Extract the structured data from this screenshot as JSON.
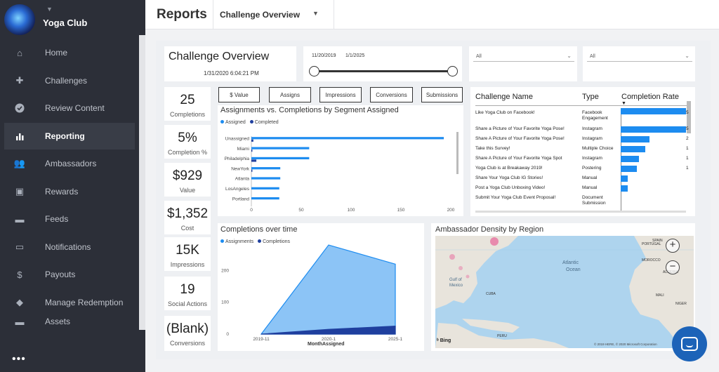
{
  "sidebar": {
    "title": "Yoga Club",
    "items": [
      {
        "label": "Home",
        "icon": "home-icon"
      },
      {
        "label": "Challenges",
        "icon": "puzzle-icon"
      },
      {
        "label": "Review Content",
        "icon": "check-circle-icon"
      },
      {
        "label": "Reporting",
        "icon": "bar-chart-icon"
      },
      {
        "label": "Ambassadors",
        "icon": "people-icon"
      },
      {
        "label": "Rewards",
        "icon": "briefcase-icon"
      },
      {
        "label": "Feeds",
        "icon": "feed-icon"
      },
      {
        "label": "Notifications",
        "icon": "chat-icon"
      },
      {
        "label": "Payouts",
        "icon": "dollar-icon"
      },
      {
        "label": "Manage Redemption",
        "icon": "tag-icon"
      },
      {
        "label": "Assets",
        "icon": "folder-icon"
      }
    ],
    "more": "•••"
  },
  "topbar": {
    "title": "Reports",
    "dropdown": "Challenge Overview"
  },
  "report": {
    "title": "Challenge Overview",
    "timestamp": "1/31/2020 6:04:21 PM",
    "date_start": "11/20/2019",
    "date_end": "1/1/2025",
    "filter1": "All",
    "filter2": "All",
    "buttons": [
      "$ Value",
      "Assigns",
      "Impressions",
      "Conversions",
      "Submissions"
    ]
  },
  "kpis": [
    {
      "value": "25",
      "label": "Completions"
    },
    {
      "value": "5%",
      "label": "Completion %"
    },
    {
      "value": "$929",
      "label": "Value"
    },
    {
      "value": "$1,352",
      "label": "Cost"
    },
    {
      "value": "15K",
      "label": "Impressions"
    },
    {
      "value": "19",
      "label": "Social Actions"
    },
    {
      "value": "(Blank)",
      "label": "Conversions"
    }
  ],
  "bar_chart": {
    "title": "Assignments vs. Completions by Segment Assigned",
    "legend": [
      "Assigned",
      "Completed"
    ]
  },
  "area_chart": {
    "title": "Completions over time",
    "legend": [
      "Assignments",
      "Completions"
    ],
    "xlabel": "MonthAssigned"
  },
  "map": {
    "title": "Ambassador Density by Region",
    "labels": [
      "Atlantic",
      "Ocean",
      "Gulf of",
      "Mexico",
      "PORTUGAL",
      "SPAIN",
      "MOROCCO",
      "ALGERIA",
      "MALI",
      "NIGER",
      "CUBA",
      "PERU"
    ],
    "bing": "Bing",
    "copyright": "© 2019 HERE, © 2020 Microsoft Corporation"
  },
  "table": {
    "headers": [
      "Challenge Name",
      "Type",
      "Completion Rate"
    ],
    "rows": [
      {
        "name": "Like Yoga Club on Facebook!",
        "type": "Facebook Engagement",
        "rate": 0.98,
        "num": "5"
      },
      {
        "name": "Share a Picture of Your Favorite Yoga Pose!",
        "type": "Instagram",
        "rate": 0.98,
        "num": "5"
      },
      {
        "name": "Share A Picture of Your Favorite Yoga Pose!",
        "type": "Instagram",
        "rate": 0.43,
        "num": "2"
      },
      {
        "name": "Take this Survey!",
        "type": "Multiple Choice",
        "rate": 0.37,
        "num": "1"
      },
      {
        "name": "Share A Picture of Your Favorite Yoga Spot",
        "type": "Instagram",
        "rate": 0.27,
        "num": "1"
      },
      {
        "name": "Yoga Club is at Breakaway 2019!",
        "type": "Postering",
        "rate": 0.24,
        "num": "1"
      },
      {
        "name": "Share Your Yoga Club IG Stories!",
        "type": "Manual",
        "rate": 0.11,
        "num": ""
      },
      {
        "name": "Post a Yoga Club Unboxing Video!",
        "type": "Manual",
        "rate": 0.11,
        "num": ""
      },
      {
        "name": "Submit Your Yoga Club Event Proposal!",
        "type": "Document Submission",
        "rate": 0.0,
        "num": ""
      }
    ]
  },
  "colors": {
    "assigned": "#1d8cf0",
    "completed": "#1f3f9e",
    "area": "#8cc4f6"
  },
  "chart_data": [
    {
      "type": "bar",
      "title": "Assignments vs. Completions by Segment Assigned",
      "categories": [
        "Unassigned",
        "Miami",
        "Philadelphia",
        "NewYork",
        "Atlanta",
        "LosAngeles",
        "Portland"
      ],
      "series": [
        {
          "name": "Assigned",
          "values": [
            193,
            58,
            58,
            29,
            29,
            28,
            28
          ]
        },
        {
          "name": "Completed",
          "values": [
            2,
            1,
            5,
            1,
            0,
            0,
            0
          ]
        }
      ],
      "xticks": [
        "0",
        "50",
        "100",
        "150",
        "200"
      ],
      "xlim": [
        0,
        200
      ]
    },
    {
      "type": "area",
      "title": "Completions over time",
      "x": [
        "2019-11",
        "2020-1",
        "2025-1"
      ],
      "series": [
        {
          "name": "Assignments",
          "values": [
            0,
            280,
            220
          ]
        },
        {
          "name": "Completions",
          "values": [
            0,
            15,
            25
          ]
        }
      ],
      "xlabel": "MonthAssigned",
      "yticks": [
        "0",
        "100",
        "200"
      ],
      "ylim": [
        0,
        300
      ]
    }
  ]
}
